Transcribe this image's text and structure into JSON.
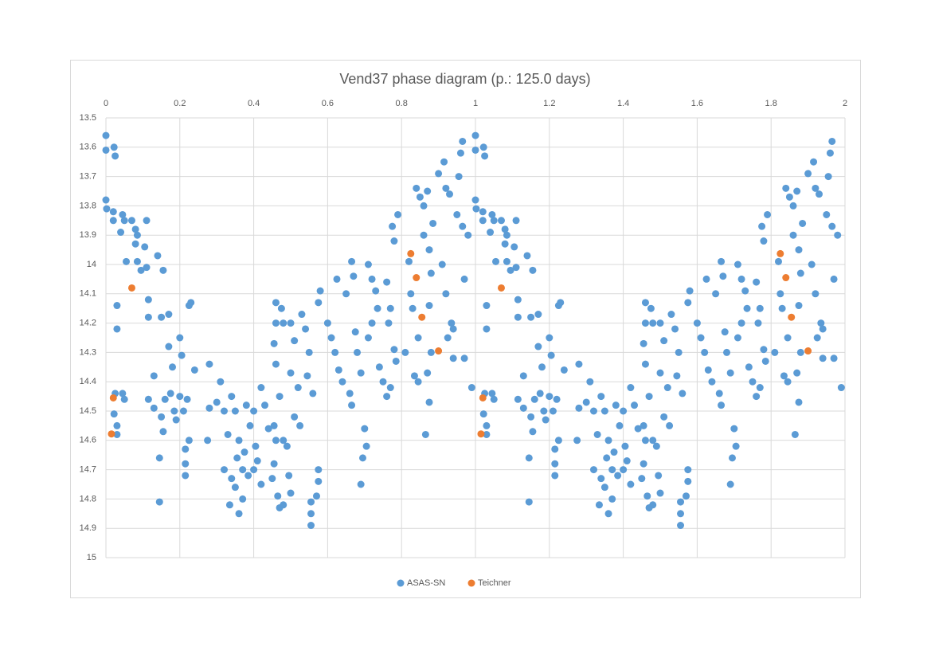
{
  "chart_data": {
    "type": "scatter",
    "title": "Vend37 phase diagram (p.: 125.0 days)",
    "xlim": [
      0,
      2
    ],
    "xticks": [
      0,
      0.2,
      0.4,
      0.6,
      0.8,
      1,
      1.2,
      1.4,
      1.6,
      1.8,
      2
    ],
    "x_axis_position": "top",
    "ylim": [
      13.5,
      15
    ],
    "yticks": [
      13.5,
      13.6,
      13.7,
      13.8,
      13.9,
      14,
      14.1,
      14.2,
      14.3,
      14.4,
      14.5,
      14.6,
      14.7,
      14.8,
      14.9,
      15
    ],
    "y_inverted": true,
    "grid": true,
    "legend": "bottom",
    "series": [
      {
        "name": "ASAS-SN",
        "color": "#5b9bd5",
        "x": [
          0,
          0,
          0,
          0.002,
          0.022,
          0.025,
          0.02,
          0.02,
          0.03,
          0.03,
          0.025,
          0.022,
          0.03,
          0.03,
          0.045,
          0.05,
          0.04,
          0.045,
          0.05,
          0.055,
          0.07,
          0.08,
          0.085,
          0.08,
          0.085,
          0.095,
          0.11,
          0.105,
          0.11,
          0.115,
          0.115,
          0.115,
          0.13,
          0.13,
          0.14,
          0.155,
          0.15,
          0.16,
          0.15,
          0.155,
          0.145,
          0.145,
          0.17,
          0.17,
          0.18,
          0.175,
          0.185,
          0.19,
          0.2,
          0.205,
          0.2,
          0.21,
          0.225,
          0.23,
          0.22,
          0.225,
          0.215,
          0.215,
          0.215,
          0.24,
          0.28,
          0.28,
          0.275,
          0.31,
          0.3,
          0.32,
          0.33,
          0.32,
          0.34,
          0.35,
          0.36,
          0.355,
          0.37,
          0.34,
          0.35,
          0.335,
          0.36,
          0.38,
          0.39,
          0.375,
          0.385,
          0.37,
          0.4,
          0.405,
          0.41,
          0.4,
          0.42,
          0.42,
          0.43,
          0.44,
          0.46,
          0.46,
          0.455,
          0.46,
          0.47,
          0.455,
          0.46,
          0.455,
          0.45,
          0.465,
          0.47,
          0.48,
          0.48,
          0.475,
          0.5,
          0.51,
          0.5,
          0.52,
          0.51,
          0.525,
          0.49,
          0.495,
          0.5,
          0.48,
          0.53,
          0.54,
          0.55,
          0.545,
          0.56,
          0.555,
          0.555,
          0.555,
          0.575,
          0.575,
          0.57,
          0.58,
          0.575,
          0.6,
          0.61,
          0.62,
          0.63,
          0.64,
          0.625,
          0.65,
          0.665,
          0.67,
          0.675,
          0.68,
          0.69,
          0.66,
          0.665,
          0.695,
          0.69,
          0.71,
          0.72,
          0.73,
          0.735,
          0.72,
          0.71,
          0.74,
          0.75,
          0.7,
          0.705,
          0.775,
          0.79,
          0.78,
          0.76,
          0.77,
          0.765,
          0.78,
          0.785,
          0.77,
          0.76,
          0.84,
          0.85,
          0.86,
          0.82,
          0.825,
          0.83,
          0.845,
          0.81,
          0.835,
          0.845,
          0.87,
          0.885,
          0.86,
          0.875,
          0.88,
          0.875,
          0.88,
          0.87,
          0.875,
          0.865,
          0.9,
          0.92,
          0.915,
          0.93,
          0.91,
          0.92,
          0.935,
          0.925,
          0.94,
          0.965,
          0.96,
          0.955,
          0.95,
          0.965,
          0.98,
          0.97,
          0.94,
          0.97,
          0.99,
          1,
          1,
          1,
          1.002,
          1.022,
          1.025,
          1.02,
          1.02,
          1.03,
          1.03,
          1.025,
          1.022,
          1.03,
          1.03,
          1.045,
          1.05,
          1.04,
          1.045,
          1.05,
          1.055,
          1.07,
          1.08,
          1.085,
          1.08,
          1.085,
          1.095,
          1.11,
          1.105,
          1.11,
          1.115,
          1.115,
          1.115,
          1.13,
          1.13,
          1.14,
          1.155,
          1.15,
          1.16,
          1.15,
          1.155,
          1.145,
          1.145,
          1.17,
          1.17,
          1.18,
          1.175,
          1.185,
          1.19,
          1.2,
          1.205,
          1.2,
          1.21,
          1.225,
          1.23,
          1.22,
          1.225,
          1.215,
          1.215,
          1.215,
          1.24,
          1.28,
          1.28,
          1.275,
          1.31,
          1.3,
          1.32,
          1.33,
          1.32,
          1.34,
          1.35,
          1.36,
          1.355,
          1.37,
          1.34,
          1.35,
          1.335,
          1.36,
          1.38,
          1.39,
          1.375,
          1.385,
          1.37,
          1.4,
          1.405,
          1.41,
          1.4,
          1.42,
          1.42,
          1.43,
          1.44,
          1.46,
          1.46,
          1.455,
          1.46,
          1.47,
          1.455,
          1.46,
          1.455,
          1.45,
          1.465,
          1.47,
          1.48,
          1.48,
          1.475,
          1.5,
          1.51,
          1.5,
          1.52,
          1.51,
          1.525,
          1.49,
          1.495,
          1.5,
          1.48,
          1.53,
          1.54,
          1.55,
          1.545,
          1.56,
          1.555,
          1.555,
          1.555,
          1.575,
          1.575,
          1.57,
          1.58,
          1.575,
          1.6,
          1.61,
          1.62,
          1.63,
          1.64,
          1.625,
          1.65,
          1.665,
          1.67,
          1.675,
          1.68,
          1.69,
          1.66,
          1.665,
          1.695,
          1.69,
          1.71,
          1.72,
          1.73,
          1.735,
          1.72,
          1.71,
          1.74,
          1.75,
          1.7,
          1.705,
          1.775,
          1.79,
          1.78,
          1.76,
          1.77,
          1.765,
          1.78,
          1.785,
          1.77,
          1.76,
          1.84,
          1.85,
          1.86,
          1.82,
          1.825,
          1.83,
          1.845,
          1.81,
          1.835,
          1.845,
          1.87,
          1.885,
          1.86,
          1.875,
          1.88,
          1.875,
          1.88,
          1.87,
          1.875,
          1.865,
          1.9,
          1.92,
          1.915,
          1.93,
          1.91,
          1.92,
          1.935,
          1.925,
          1.94,
          1.965,
          1.96,
          1.955,
          1.95,
          1.965,
          1.98,
          1.97,
          1.94,
          1.97,
          1.99
        ],
        "values": [
          13.56,
          13.61,
          13.78,
          13.81,
          13.6,
          13.63,
          13.82,
          13.85,
          14.14,
          14.22,
          14.44,
          14.51,
          14.55,
          14.58,
          13.83,
          13.85,
          13.89,
          14.44,
          14.46,
          13.99,
          13.85,
          13.88,
          13.9,
          13.93,
          13.99,
          14.02,
          13.85,
          13.94,
          14.01,
          14.12,
          14.18,
          14.46,
          14.38,
          14.49,
          13.97,
          14.02,
          14.18,
          14.46,
          14.52,
          14.57,
          14.66,
          14.81,
          14.17,
          14.28,
          14.35,
          14.44,
          14.5,
          14.53,
          14.25,
          14.31,
          14.45,
          14.5,
          14.14,
          14.13,
          14.46,
          14.6,
          14.63,
          14.68,
          14.72,
          14.36,
          14.34,
          14.49,
          14.6,
          14.4,
          14.47,
          14.5,
          14.58,
          14.7,
          14.45,
          14.5,
          14.6,
          14.66,
          14.7,
          14.73,
          14.76,
          14.82,
          14.85,
          14.48,
          14.55,
          14.64,
          14.72,
          14.8,
          14.5,
          14.62,
          14.67,
          14.7,
          14.75,
          14.42,
          14.48,
          14.56,
          14.13,
          14.2,
          14.27,
          14.34,
          14.45,
          14.55,
          14.6,
          14.68,
          14.73,
          14.79,
          14.83,
          14.6,
          14.2,
          14.15,
          14.2,
          14.26,
          14.37,
          14.42,
          14.52,
          14.55,
          14.62,
          14.72,
          14.78,
          14.82,
          14.17,
          14.22,
          14.3,
          14.38,
          14.44,
          14.81,
          14.85,
          14.89,
          14.7,
          14.74,
          14.79,
          14.09,
          14.13,
          14.2,
          14.25,
          14.3,
          14.36,
          14.4,
          14.05,
          14.1,
          13.99,
          14.04,
          14.23,
          14.3,
          14.37,
          14.44,
          14.48,
          14.66,
          14.75,
          14,
          14.05,
          14.09,
          14.15,
          14.2,
          14.25,
          14.35,
          14.4,
          14.56,
          14.62,
          13.87,
          13.83,
          13.92,
          14.06,
          14.15,
          14.2,
          14.29,
          14.33,
          14.42,
          14.45,
          13.74,
          13.77,
          13.8,
          13.99,
          14.1,
          14.15,
          14.25,
          14.3,
          14.38,
          14.4,
          13.75,
          13.86,
          13.9,
          13.95,
          14.03,
          14.14,
          14.3,
          14.37,
          14.47,
          14.58,
          13.69,
          13.74,
          13.65,
          13.76,
          14,
          14.1,
          14.2,
          14.25,
          14.32,
          13.58,
          13.62,
          13.7,
          13.83,
          13.87,
          13.9,
          14.05,
          14.22,
          14.32,
          14.42,
          13.56,
          13.61,
          13.78,
          13.81,
          13.6,
          13.63,
          13.82,
          13.85,
          14.14,
          14.22,
          14.44,
          14.51,
          14.55,
          14.58,
          13.83,
          13.85,
          13.89,
          14.44,
          14.46,
          13.99,
          13.85,
          13.88,
          13.9,
          13.93,
          13.99,
          14.02,
          13.85,
          13.94,
          14.01,
          14.12,
          14.18,
          14.46,
          14.38,
          14.49,
          13.97,
          14.02,
          14.18,
          14.46,
          14.52,
          14.57,
          14.66,
          14.81,
          14.17,
          14.28,
          14.35,
          14.44,
          14.5,
          14.53,
          14.25,
          14.31,
          14.45,
          14.5,
          14.14,
          14.13,
          14.46,
          14.6,
          14.63,
          14.68,
          14.72,
          14.36,
          14.34,
          14.49,
          14.6,
          14.4,
          14.47,
          14.5,
          14.58,
          14.7,
          14.45,
          14.5,
          14.6,
          14.66,
          14.7,
          14.73,
          14.76,
          14.82,
          14.85,
          14.48,
          14.55,
          14.64,
          14.72,
          14.8,
          14.5,
          14.62,
          14.67,
          14.7,
          14.75,
          14.42,
          14.48,
          14.56,
          14.13,
          14.2,
          14.27,
          14.34,
          14.45,
          14.55,
          14.6,
          14.68,
          14.73,
          14.79,
          14.83,
          14.6,
          14.2,
          14.15,
          14.2,
          14.26,
          14.37,
          14.42,
          14.52,
          14.55,
          14.62,
          14.72,
          14.78,
          14.82,
          14.17,
          14.22,
          14.3,
          14.38,
          14.44,
          14.81,
          14.85,
          14.89,
          14.7,
          14.74,
          14.79,
          14.09,
          14.13,
          14.2,
          14.25,
          14.3,
          14.36,
          14.4,
          14.05,
          14.1,
          13.99,
          14.04,
          14.23,
          14.3,
          14.37,
          14.44,
          14.48,
          14.66,
          14.75,
          14,
          14.05,
          14.09,
          14.15,
          14.2,
          14.25,
          14.35,
          14.4,
          14.56,
          14.62,
          13.87,
          13.83,
          13.92,
          14.06,
          14.15,
          14.2,
          14.29,
          14.33,
          14.42,
          14.45,
          13.74,
          13.77,
          13.8,
          13.99,
          14.1,
          14.15,
          14.25,
          14.3,
          14.38,
          14.4,
          13.75,
          13.86,
          13.9,
          13.95,
          14.03,
          14.14,
          14.3,
          14.37,
          14.47,
          14.58,
          13.69,
          13.74,
          13.65,
          13.76,
          14,
          14.1,
          14.2,
          14.25,
          14.32,
          13.58,
          13.62,
          13.7,
          13.83,
          13.87,
          13.9,
          14.05,
          14.22,
          14.32,
          14.42
        ]
      },
      {
        "name": "Teichner",
        "color": "#ed7d31",
        "x": [
          0.02,
          0.015,
          0.07,
          0.825,
          0.84,
          0.855,
          0.9,
          1.02,
          1.015,
          1.07,
          1.825,
          1.84,
          1.855,
          1.9
        ],
        "values": [
          14.455,
          14.578,
          14.08,
          13.963,
          14.045,
          14.18,
          14.295,
          14.455,
          14.578,
          14.08,
          13.963,
          14.045,
          14.18,
          14.295
        ]
      }
    ]
  }
}
